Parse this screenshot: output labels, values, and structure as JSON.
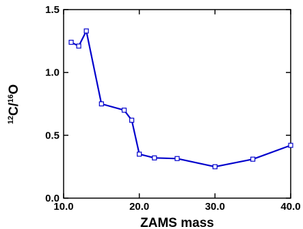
{
  "chart_data": {
    "type": "line",
    "xlabel": "ZAMS mass",
    "ylabel": {
      "mass1": "12",
      "elem1": "C/",
      "mass2": "16",
      "elem2": "O"
    },
    "xlim": [
      10,
      40
    ],
    "ylim": [
      0,
      1.5
    ],
    "x_ticks": [
      10,
      20,
      30,
      40
    ],
    "x_tick_labels": [
      "10.0",
      "20.0",
      "30.0",
      "40.0"
    ],
    "y_ticks": [
      0,
      0.5,
      1.0,
      1.5
    ],
    "y_tick_labels": [
      "0.0",
      "0.5",
      "1.0",
      "1.5"
    ],
    "grid": false,
    "series": [
      {
        "color": "#0000cc",
        "marker": "open-square",
        "x": [
          11,
          12,
          13,
          15,
          18,
          19,
          20,
          22,
          25,
          30,
          35,
          40
        ],
        "y": [
          1.24,
          1.21,
          1.33,
          0.75,
          0.7,
          0.62,
          0.35,
          0.32,
          0.315,
          0.25,
          0.31,
          0.42
        ]
      }
    ]
  }
}
